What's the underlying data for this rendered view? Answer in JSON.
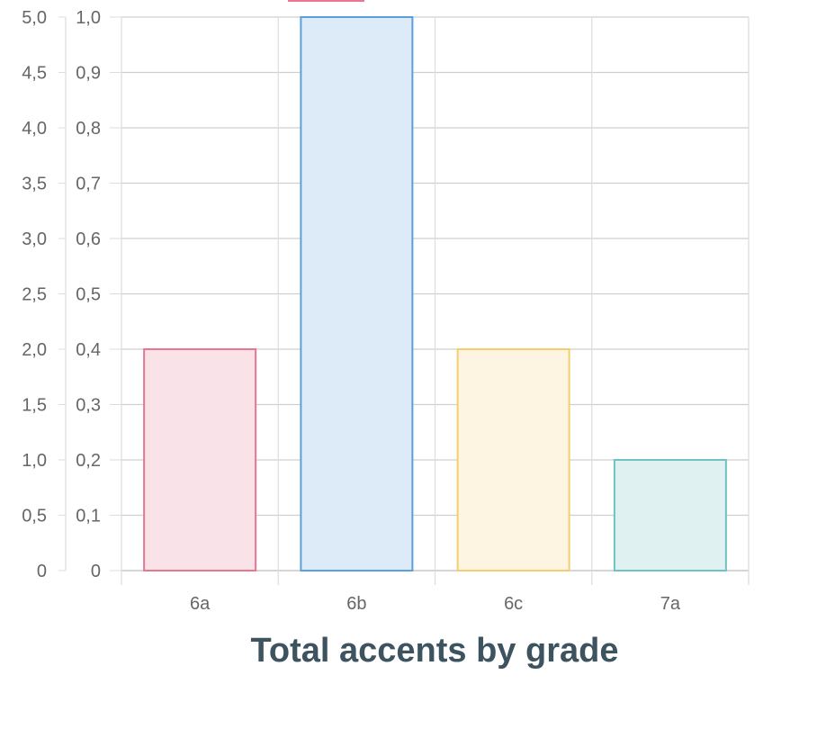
{
  "chart_data": {
    "type": "bar",
    "title": "Total accents by grade",
    "categories": [
      "6a",
      "6b",
      "6c",
      "7a"
    ],
    "values": [
      0.4,
      1.0,
      0.4,
      0.2
    ],
    "series": [
      {
        "values": [
          0.4,
          1.0,
          0.4,
          0.2
        ]
      }
    ],
    "xlabel": "",
    "ylabel": "",
    "ylim": [
      0,
      1.0
    ],
    "y_ticks": [
      "0",
      "0,1",
      "0,2",
      "0,3",
      "0,4",
      "0,5",
      "0,6",
      "0,7",
      "0,8",
      "0,9",
      "1,0"
    ],
    "y2lim": [
      0,
      5.0
    ],
    "y2_ticks": [
      "0",
      "0,5",
      "1,0",
      "1,5",
      "2,0",
      "2,5",
      "3,0",
      "3,5",
      "4,0",
      "4,5",
      "5,0"
    ],
    "grid": true,
    "legend": false,
    "bar_fill_colors": [
      "#fae3e8",
      "#ddebf9",
      "#fdf4e1",
      "#e0f1f1"
    ],
    "bar_border_colors": [
      "#e8768f",
      "#5aa0da",
      "#f5cd6f",
      "#6fc2c0"
    ],
    "legend_swatch_color": "#e8768f"
  }
}
